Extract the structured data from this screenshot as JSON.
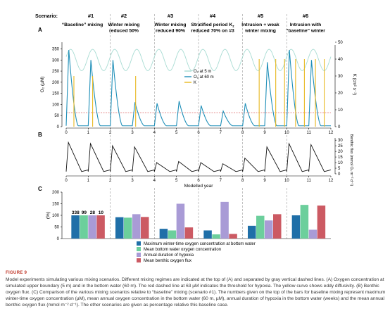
{
  "scenario_label": "Scenario:",
  "scenarios": [
    {
      "num": "#1",
      "title": [
        "“Baseline” mixing"
      ]
    },
    {
      "num": "#2",
      "title": [
        "Winter mixing",
        "reduced 50%"
      ]
    },
    {
      "num": "#3",
      "title": [
        "Winter mixing",
        "reduced 90%"
      ]
    },
    {
      "num": "#4",
      "title": [
        "Stratified period K",
        "reduced 70% on #3"
      ]
    },
    {
      "num": "#5",
      "title": [
        "Intrusion + weak",
        "winter mixing"
      ]
    },
    {
      "num": "#6",
      "title": [
        "Intrusion with",
        "“baseline” winter"
      ]
    }
  ],
  "panel_labels": {
    "a": "A",
    "b": "B",
    "c": "C"
  },
  "xlabel": "Modelled year",
  "x_ticks": [
    "0",
    "1",
    "2",
    "3",
    "4",
    "5",
    "6",
    "7",
    "8",
    "9",
    "10",
    "11",
    "12"
  ],
  "colors": {
    "o2_5m": "#a8dcd3",
    "o2_60m": "#1f8fb8",
    "kz": "#e8b820",
    "hypoxia": "#d64a4a",
    "benthic": "#111111",
    "divider": "#999999",
    "bar1": "#1f6fa8",
    "bar2": "#6ccf9c",
    "bar3": "#a99bd6",
    "bar4": "#cc5a63"
  },
  "chart_data": [
    {
      "panel": "A",
      "type": "line",
      "ylabel": "O₂ (µM)",
      "ylim": [
        0,
        380
      ],
      "y_ticks": [
        "0",
        "50",
        "100",
        "150",
        "200",
        "250",
        "300",
        "350"
      ],
      "y2label": "K_z (cm² s⁻¹)",
      "y2lim": [
        0,
        50
      ],
      "y2_ticks": [
        "0",
        "10",
        "20",
        "30",
        "40",
        "50"
      ],
      "hypoxia_threshold": 63,
      "legend": [
        "O₂ at 5 m",
        "O₂ at 60 m",
        "K_z"
      ],
      "series": [
        {
          "name": "O₂ at 5 m",
          "pattern": "seasonal cycle between ~255 and ~350 µM each year"
        },
        {
          "name": "O₂ at 60 m",
          "peaks_per_year": [
            345,
            300,
            300,
            110,
            105,
            115,
            95,
            70,
            105,
            290,
            345,
            300
          ]
        },
        {
          "name": "K_z",
          "spikes": [
            [
              0.35,
              30
            ],
            [
              1.2,
              30
            ],
            [
              3.15,
              30
            ],
            [
              8.75,
              40
            ],
            [
              9.5,
              40
            ],
            [
              9.9,
              40
            ],
            [
              10.4,
              40
            ],
            [
              10.8,
              40
            ],
            [
              11.3,
              40
            ],
            [
              11.7,
              40
            ]
          ]
        }
      ]
    },
    {
      "panel": "B",
      "type": "line",
      "ylabel": "Benthic flux (mmol O₂ m⁻² d⁻¹)",
      "ylim": [
        0,
        32
      ],
      "y_ticks": [
        "0",
        "5",
        "10",
        "15",
        "20",
        "25",
        "30"
      ],
      "series": [
        {
          "name": "Benthic flux",
          "peaks_per_year": [
            28,
            27,
            25,
            24,
            10,
            11,
            10,
            9,
            14,
            24,
            27,
            26
          ]
        }
      ]
    },
    {
      "panel": "C",
      "type": "bar",
      "ylabel": "(%)",
      "ylim": [
        0,
        200
      ],
      "y_ticks": [
        "0",
        "50",
        "100",
        "150",
        "200"
      ],
      "categories": [
        "#1",
        "#2",
        "#3",
        "#4",
        "#5",
        "#6"
      ],
      "baseline_labels": [
        "338",
        "99",
        "28",
        "10"
      ],
      "series": [
        {
          "name": "Maximum winter-time oxygen concentration at bottom water",
          "values": [
            100,
            92,
            42,
            35,
            55,
            100
          ]
        },
        {
          "name": "Mean bottom water oxygen concentration",
          "values": [
            100,
            90,
            35,
            18,
            98,
            145
          ]
        },
        {
          "name": "Annual duration of hypoxia",
          "values": [
            100,
            105,
            150,
            158,
            78,
            38
          ]
        },
        {
          "name": "Mean benthic oxygen flux",
          "values": [
            100,
            93,
            48,
            20,
            105,
            142
          ]
        }
      ]
    }
  ],
  "caption": {
    "fig_label": "FIGURE 9",
    "text": "Model experiments simulating various mixing scenarios. Different mixing regimes are indicated at the top of (A) and separated by gray vertical dashed lines. (A) Oxygen concentration at simulated upper boundary (5 m) and in the bottom water (60 m). The red dashed line at 63 µM indicates the threshold for hypoxia. The yellow curve shows eddy diffusivity. (B) Benthic oxygen flux. (C) Comparison of the various mixing scenarios relative to “baseline” mixing (scenario #1). The numbers given on the top of the bars for baseline mixing represent maximum winter-time oxygen concentration (µM), mean annual oxygen concentration in the bottom water (60 m, µM), annual duration of hypoxia in the bottom water (weeks) and the mean annual benthic oxygen flux (mmol m⁻² d⁻¹). The other scenarios are given as percentage relative this baseline case."
  }
}
